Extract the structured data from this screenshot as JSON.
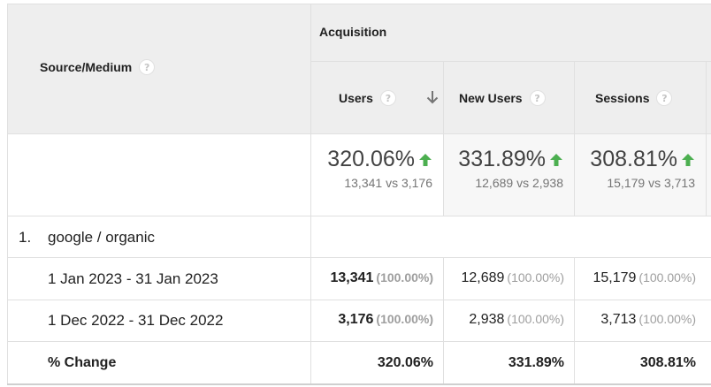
{
  "header": {
    "dimension_label": "Source/Medium",
    "group_label": "Acquisition",
    "help_glyph": "?",
    "metrics": [
      {
        "label": "Users",
        "sorted": true
      },
      {
        "label": "New Users",
        "sorted": false
      },
      {
        "label": "Sessions",
        "sorted": false
      }
    ]
  },
  "summary": [
    {
      "change": "320.06%",
      "compare": "13,341 vs 3,176"
    },
    {
      "change": "331.89%",
      "compare": "12,689 vs 2,938"
    },
    {
      "change": "308.81%",
      "compare": "15,179 vs 3,713"
    }
  ],
  "rows": {
    "group_index": "1.",
    "group_name": "google / organic",
    "current": {
      "label": "1 Jan 2023 - 31 Jan 2023",
      "cells": [
        {
          "value": "13,341",
          "share": "(100.00%)"
        },
        {
          "value": "12,689",
          "share": "(100.00%)"
        },
        {
          "value": "15,179",
          "share": "(100.00%)"
        }
      ]
    },
    "previous": {
      "label": "1 Dec 2022 - 31 Dec 2022",
      "cells": [
        {
          "value": "3,176",
          "share": "(100.00%)"
        },
        {
          "value": "2,938",
          "share": "(100.00%)"
        },
        {
          "value": "3,713",
          "share": "(100.00%)"
        }
      ]
    },
    "change": {
      "label": "% Change",
      "cells": [
        "320.06%",
        "331.89%",
        "308.81%"
      ]
    }
  },
  "colors": {
    "header_bg": "#eeeeee",
    "border": "#e0e0e0",
    "positive_arrow": "#4caf50",
    "sort_arrow": "#757575"
  },
  "icons": {
    "help": "question-circle-icon",
    "sort": "arrow-down-icon",
    "change": "arrow-up-green-icon"
  }
}
